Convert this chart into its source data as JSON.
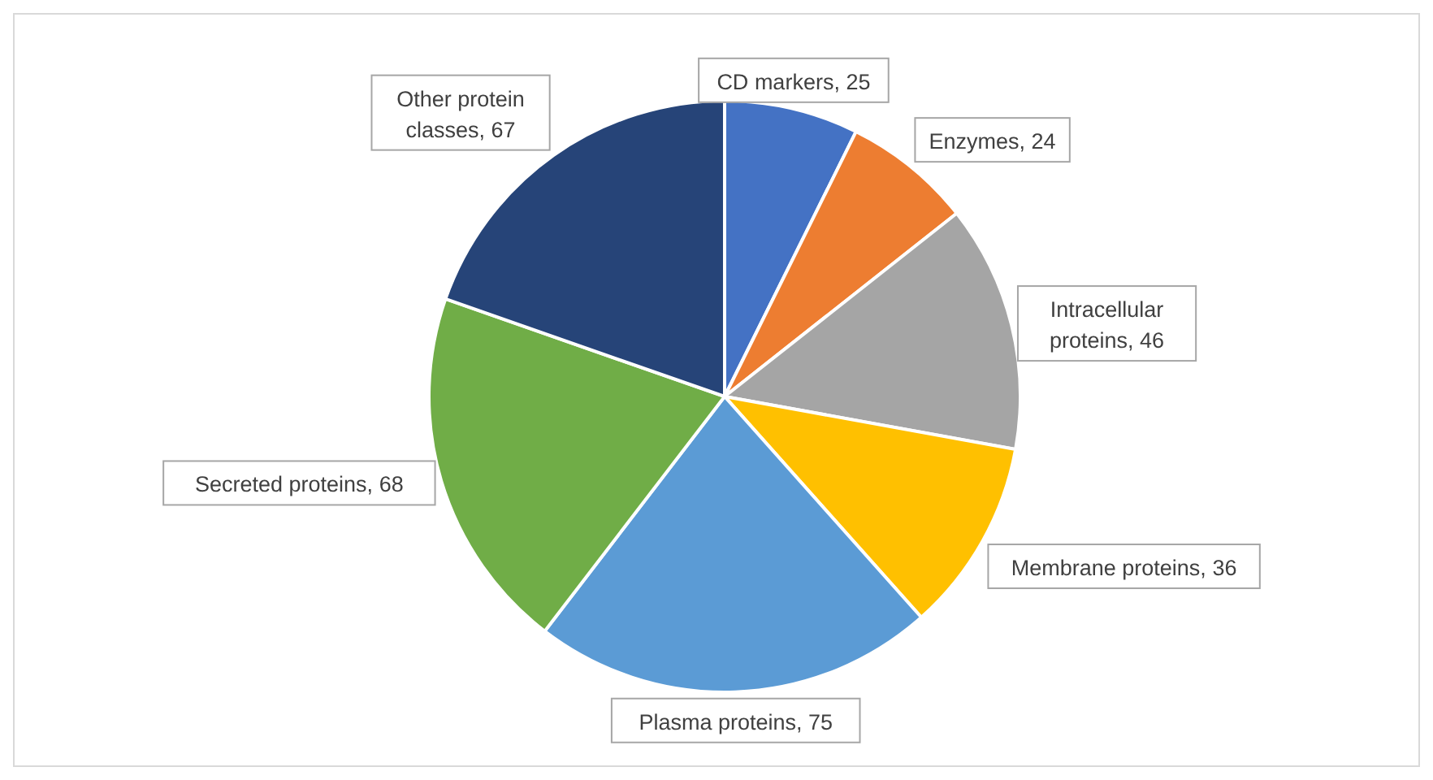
{
  "chart_data": {
    "type": "pie",
    "categories": [
      "CD markers, 25",
      "Enzymes, 24",
      "Intracellular proteins, 46",
      "Membrane proteins, 36",
      "Plasma proteins, 75",
      "Secreted proteins, 68",
      "Other protein classes, 67"
    ],
    "values": [
      25,
      24,
      46,
      36,
      75,
      68,
      67
    ],
    "colors": [
      "#4472c4",
      "#ed7d31",
      "#a5a5a5",
      "#ffc000",
      "#5b9bd5",
      "#70ad47",
      "#264478"
    ],
    "legend": false
  }
}
